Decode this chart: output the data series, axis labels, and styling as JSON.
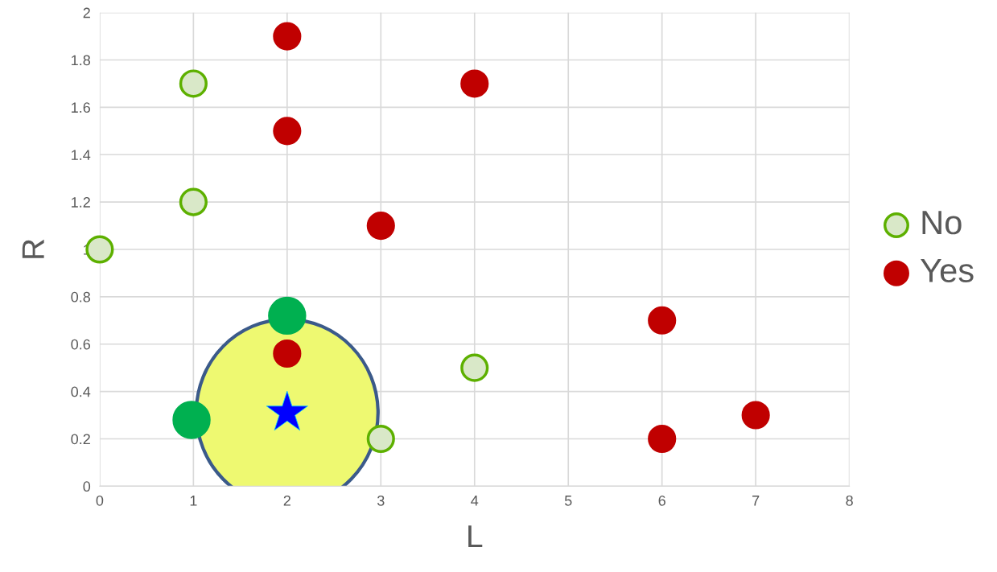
{
  "chart_data": {
    "type": "scatter",
    "xlabel": "L",
    "ylabel": "R",
    "xlim": [
      0,
      8
    ],
    "ylim": [
      0,
      2
    ],
    "xticks": [
      0,
      1,
      2,
      3,
      4,
      5,
      6,
      7,
      8
    ],
    "yticks": [
      0,
      {
        "value": 0.2,
        "label": "0.2"
      },
      {
        "value": 0.4,
        "label": "0.4"
      },
      {
        "value": 0.6,
        "label": "0.6"
      },
      {
        "value": 0.8,
        "label": "0.8"
      },
      1,
      {
        "value": 1.2,
        "label": "1.2"
      },
      {
        "value": 1.4,
        "label": "1.4"
      },
      {
        "value": 1.6,
        "label": "1.6"
      },
      {
        "value": 1.8,
        "label": "1.8"
      },
      2
    ],
    "grid": true,
    "legend": "right",
    "marker": "circle",
    "series": [
      {
        "name": "No",
        "color": "#d9e8c8",
        "x": [
          0,
          1,
          1,
          3,
          4
        ],
        "values": [
          1,
          1.7,
          1.2,
          0.2,
          0.5
        ]
      },
      {
        "name": "Yes",
        "color": "#c00000",
        "x": [
          2,
          4,
          2,
          3,
          2,
          6,
          7,
          6
        ],
        "values": [
          1.9,
          1.7,
          1.5,
          1.1,
          0.56,
          0.7,
          0.3,
          0.2
        ]
      },
      {
        "color": "#00b050",
        "x": [
          2,
          0.98
        ],
        "values": [
          0.72,
          0.28
        ]
      },
      {
        "color": "#0000ff",
        "marker": "star",
        "x": [
          2
        ],
        "values": [
          0.31
        ]
      }
    ]
  }
}
